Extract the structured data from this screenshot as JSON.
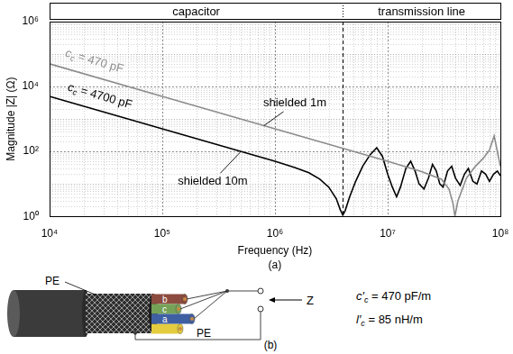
{
  "chart_data": {
    "type": "line",
    "log": true,
    "grid": true,
    "x_label": "Frequency (Hz)",
    "y_label": "Magnitude |Z| (Ω)",
    "panel": "(a)",
    "xlim": [
      10000,
      100000000
    ],
    "ylim": [
      1,
      1000000
    ],
    "xticks": [
      {
        "value": 10000,
        "label": "10⁴"
      },
      {
        "value": 100000,
        "label": "10⁵"
      },
      {
        "value": 1000000,
        "label": "10⁶"
      },
      {
        "value": 10000000,
        "label": "10⁷"
      },
      {
        "value": 100000000,
        "label": "10⁸"
      }
    ],
    "yticks": [
      {
        "value": 1,
        "label": "10⁰"
      },
      {
        "value": 100,
        "label": "10²"
      },
      {
        "value": 10000,
        "label": "10⁴"
      },
      {
        "value": 1000000,
        "label": "10⁶"
      }
    ],
    "regions": [
      {
        "label": "capacitor",
        "from": 10000,
        "to": 4000000
      },
      {
        "label": "transmission line",
        "from": 4000000,
        "to": 100000000
      }
    ],
    "series": [
      {
        "color": "#8c8c8c",
        "x": [
          10000,
          100000,
          1000000,
          10000000,
          20000000,
          30000000,
          35000000,
          38000000,
          39500000,
          42000000,
          50000000,
          60000000,
          70000000,
          80000000,
          88000000,
          93000000,
          100000000
        ],
        "values": [
          50000,
          5000,
          500,
          50,
          24,
          14,
          7,
          2.5,
          1,
          3,
          15,
          35,
          60,
          110,
          300,
          120,
          35
        ]
      },
      {
        "color": "#000000",
        "x": [
          10000,
          100000,
          1000000,
          1500000,
          2000000,
          2500000,
          3000000,
          3500000,
          3800000,
          4000000,
          4200000,
          4600000,
          5200000,
          6000000,
          7000000,
          8000000,
          9000000,
          10000000,
          11000000,
          12000000,
          13000000,
          14500000,
          16000000,
          17500000,
          19000000,
          21000000,
          23000000,
          25000000,
          27000000,
          29000000,
          31000000,
          34000000,
          37000000,
          40000000,
          44000000,
          48000000,
          52000000,
          57000000,
          62000000,
          68000000,
          74000000,
          80000000,
          87000000,
          94000000,
          100000000
        ],
        "values": [
          5000,
          500,
          50,
          32,
          22,
          14,
          8,
          3.5,
          1.6,
          1.1,
          1.5,
          4,
          12,
          35,
          80,
          130,
          70,
          20,
          8,
          4,
          8,
          30,
          50,
          25,
          10,
          7,
          15,
          40,
          25,
          10,
          8,
          25,
          35,
          15,
          9,
          20,
          30,
          12,
          10,
          25,
          20,
          12,
          20,
          25,
          18
        ]
      }
    ],
    "annotations": [
      {
        "symbol": "c",
        "subscript": "c",
        "text": " = 470 pF",
        "x": 25000,
        "y": 60000,
        "color": "#8c8c8c"
      },
      {
        "symbol": "c",
        "subscript": "c",
        "text": " = 4700 pF",
        "x": 28000,
        "y": 5000,
        "color": "#000000"
      },
      {
        "text": "shielded 1m",
        "x": 1500000,
        "y": 3000,
        "target": [
          800000,
          625
        ],
        "color": "#000000"
      },
      {
        "text": "shielded 10m",
        "x": 280000,
        "y": 12,
        "target": [
          500000,
          100
        ],
        "color": "#000000"
      }
    ]
  },
  "diagram": {
    "panel": "(b)",
    "shield_label": "PE",
    "earth_label": "PE",
    "cores": [
      "b",
      "c",
      "a"
    ],
    "port_label": "Z",
    "parameters": [
      {
        "symbol": "c′",
        "subscript": "c",
        "text": " = 470 pF/m"
      },
      {
        "symbol": "l′",
        "subscript": "c",
        "text": " = 85 nH/m"
      }
    ]
  }
}
